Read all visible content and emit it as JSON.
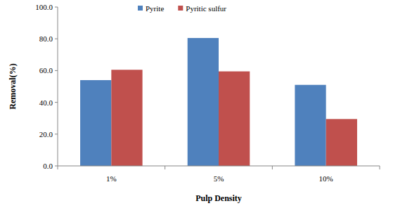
{
  "chart_data": {
    "type": "bar",
    "categories": [
      "1%",
      "5%",
      "10%"
    ],
    "series": [
      {
        "name": "Pyrite",
        "color": "#4f81bd",
        "values": [
          54.0,
          80.5,
          51.0
        ]
      },
      {
        "name": "Pyritic sulfur",
        "color": "#c0504d",
        "values": [
          60.5,
          59.5,
          29.5
        ]
      }
    ],
    "x_label": "Pulp Density",
    "y_label": "Removal(%)",
    "ylim": [
      0,
      100
    ],
    "yticks": [
      {
        "value": 0,
        "label": "0.0"
      },
      {
        "value": 20,
        "label": "20.0"
      },
      {
        "value": 40,
        "label": "40.0"
      },
      {
        "value": 60,
        "label": "60.0"
      },
      {
        "value": 80,
        "label": "80.0"
      },
      {
        "value": 100,
        "label": "100.0"
      }
    ],
    "grid": false,
    "legend": "top"
  }
}
